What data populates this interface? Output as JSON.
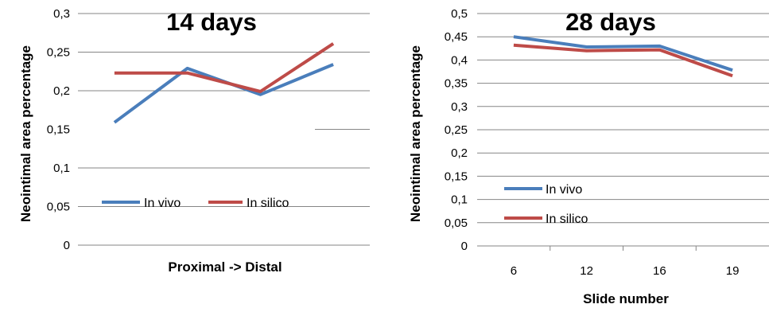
{
  "chart_data": [
    {
      "type": "line",
      "title": "14 days",
      "xlabel": "Proximal -> Distal",
      "ylabel": "Neointimal area percentage",
      "categories": [
        "",
        "",
        "",
        ""
      ],
      "ylim": [
        0,
        0.3
      ],
      "yticks": [
        "0",
        "0,05",
        "0,1",
        "0,15",
        "0,2",
        "0,25",
        "0,3"
      ],
      "grid": true,
      "legend_position": "bottom-left",
      "series": [
        {
          "name": "In vivo",
          "color": "#4a7ebb",
          "values": [
            0.159,
            0.229,
            0.195,
            0.234
          ]
        },
        {
          "name": "In silico",
          "color": "#be4b48",
          "values": [
            0.223,
            0.223,
            0.199,
            0.261
          ]
        }
      ]
    },
    {
      "type": "line",
      "title": "28 days",
      "xlabel": "Slide number",
      "ylabel": "Neointimal area percentage",
      "categories": [
        "6",
        "12",
        "16",
        "19"
      ],
      "ylim": [
        0,
        0.5
      ],
      "yticks": [
        "0",
        "0,05",
        "0,1",
        "0,15",
        "0,2",
        "0,25",
        "0,3",
        "0,35",
        "0,4",
        "0,45",
        "0,5"
      ],
      "grid": true,
      "legend_position": "bottom-left",
      "series": [
        {
          "name": "In vivo",
          "color": "#4a7ebb",
          "values": [
            0.45,
            0.428,
            0.43,
            0.378
          ]
        },
        {
          "name": "In silico",
          "color": "#be4b48",
          "values": [
            0.432,
            0.42,
            0.422,
            0.366
          ]
        }
      ]
    }
  ]
}
